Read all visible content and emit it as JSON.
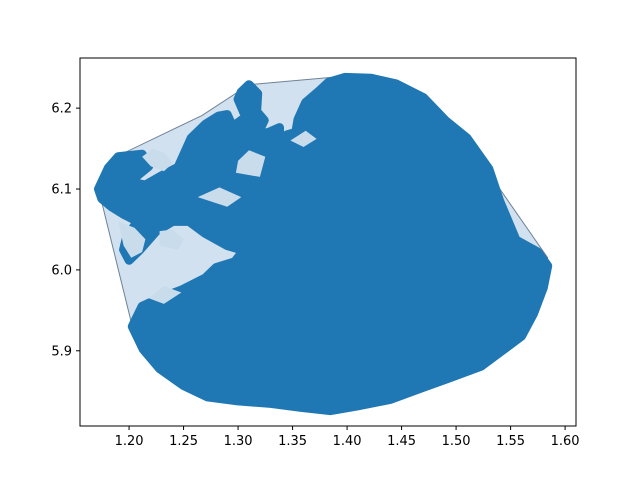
{
  "chart_data": {
    "type": "scatter",
    "title": "",
    "xlabel": "",
    "ylabel": "",
    "xlim": [
      1.155,
      1.61
    ],
    "ylim": [
      5.807,
      6.262
    ],
    "x_ticks": [
      1.2,
      1.25,
      1.3,
      1.35,
      1.4,
      1.45,
      1.5,
      1.55,
      1.6
    ],
    "x_tick_labels": [
      "1.20",
      "1.25",
      "1.30",
      "1.35",
      "1.40",
      "1.45",
      "1.50",
      "1.55",
      "1.60"
    ],
    "y_ticks": [
      5.9,
      6.0,
      6.1,
      6.2
    ],
    "y_tick_labels": [
      "5.9",
      "6.0",
      "6.1",
      "6.2"
    ],
    "grid": false,
    "point_color": "#1f77b4",
    "hull_fill": "#c9dcec",
    "hull_stroke": "#6e8296",
    "convex_hull": [
      [
        1.172,
        6.1
      ],
      [
        1.181,
        6.126
      ],
      [
        1.193,
        6.143
      ],
      [
        1.267,
        6.191
      ],
      [
        1.31,
        6.229
      ],
      [
        1.402,
        6.24
      ],
      [
        1.491,
        6.181
      ],
      [
        1.535,
        6.11
      ],
      [
        1.584,
        6.015
      ],
      [
        1.556,
        5.91
      ],
      [
        1.45,
        5.843
      ],
      [
        1.385,
        5.826
      ],
      [
        1.293,
        5.84
      ],
      [
        1.24,
        5.862
      ],
      [
        1.203,
        5.93
      ]
    ],
    "point_outline": [
      [
        1.172,
        6.1
      ],
      [
        1.181,
        6.126
      ],
      [
        1.19,
        6.14
      ],
      [
        1.212,
        6.143
      ],
      [
        1.218,
        6.128
      ],
      [
        1.208,
        6.117
      ],
      [
        1.196,
        6.11
      ],
      [
        1.215,
        6.105
      ],
      [
        1.228,
        6.115
      ],
      [
        1.245,
        6.127
      ],
      [
        1.257,
        6.163
      ],
      [
        1.27,
        6.18
      ],
      [
        1.282,
        6.19
      ],
      [
        1.29,
        6.192
      ],
      [
        1.295,
        6.177
      ],
      [
        1.307,
        6.189
      ],
      [
        1.3,
        6.211
      ],
      [
        1.303,
        6.22
      ],
      [
        1.31,
        6.229
      ],
      [
        1.318,
        6.218
      ],
      [
        1.317,
        6.196
      ],
      [
        1.324,
        6.185
      ],
      [
        1.318,
        6.168
      ],
      [
        1.328,
        6.17
      ],
      [
        1.338,
        6.176
      ],
      [
        1.338,
        6.16
      ],
      [
        1.345,
        6.167
      ],
      [
        1.353,
        6.17
      ],
      [
        1.355,
        6.186
      ],
      [
        1.362,
        6.207
      ],
      [
        1.375,
        6.222
      ],
      [
        1.383,
        6.232
      ],
      [
        1.398,
        6.238
      ],
      [
        1.422,
        6.237
      ],
      [
        1.445,
        6.23
      ],
      [
        1.47,
        6.213
      ],
      [
        1.49,
        6.185
      ],
      [
        1.51,
        6.163
      ],
      [
        1.53,
        6.125
      ],
      [
        1.54,
        6.085
      ],
      [
        1.555,
        6.037
      ],
      [
        1.575,
        6.022
      ],
      [
        1.584,
        6.005
      ],
      [
        1.58,
        5.978
      ],
      [
        1.571,
        5.946
      ],
      [
        1.56,
        5.918
      ],
      [
        1.54,
        5.898
      ],
      [
        1.523,
        5.881
      ],
      [
        1.497,
        5.868
      ],
      [
        1.47,
        5.855
      ],
      [
        1.44,
        5.84
      ],
      [
        1.41,
        5.832
      ],
      [
        1.385,
        5.826
      ],
      [
        1.358,
        5.83
      ],
      [
        1.33,
        5.835
      ],
      [
        1.3,
        5.838
      ],
      [
        1.272,
        5.843
      ],
      [
        1.25,
        5.857
      ],
      [
        1.228,
        5.878
      ],
      [
        1.213,
        5.902
      ],
      [
        1.203,
        5.93
      ],
      [
        1.212,
        5.955
      ],
      [
        1.228,
        5.965
      ],
      [
        1.248,
        5.975
      ],
      [
        1.27,
        5.99
      ],
      [
        1.28,
        6.003
      ],
      [
        1.297,
        6.01
      ],
      [
        1.305,
        6.024
      ],
      [
        1.29,
        6.03
      ],
      [
        1.27,
        6.045
      ],
      [
        1.255,
        6.06
      ],
      [
        1.24,
        6.06
      ],
      [
        1.225,
        6.048
      ],
      [
        1.21,
        6.025
      ],
      [
        1.2,
        6.012
      ],
      [
        1.195,
        6.025
      ],
      [
        1.198,
        6.042
      ],
      [
        1.208,
        6.06
      ],
      [
        1.196,
        6.068
      ],
      [
        1.184,
        6.078
      ],
      [
        1.175,
        6.088
      ]
    ],
    "gaps": [
      [
        [
          1.212,
          6.14
        ],
        [
          1.22,
          6.128
        ],
        [
          1.232,
          6.122
        ],
        [
          1.24,
          6.132
        ],
        [
          1.232,
          6.145
        ],
        [
          1.222,
          6.15
        ]
      ],
      [
        [
          1.19,
          6.06
        ],
        [
          1.205,
          6.052
        ],
        [
          1.215,
          6.038
        ],
        [
          1.212,
          6.022
        ],
        [
          1.202,
          6.015
        ],
        [
          1.195,
          6.03
        ]
      ],
      [
        [
          1.228,
          6.03
        ],
        [
          1.245,
          6.025
        ],
        [
          1.25,
          6.038
        ],
        [
          1.24,
          6.05
        ],
        [
          1.228,
          6.048
        ]
      ],
      [
        [
          1.298,
          6.12
        ],
        [
          1.32,
          6.115
        ],
        [
          1.325,
          6.14
        ],
        [
          1.31,
          6.148
        ],
        [
          1.3,
          6.135
        ]
      ],
      [
        [
          1.348,
          6.16
        ],
        [
          1.36,
          6.152
        ],
        [
          1.372,
          6.162
        ],
        [
          1.362,
          6.172
        ]
      ],
      [
        [
          1.218,
          5.965
        ],
        [
          1.232,
          5.958
        ],
        [
          1.248,
          5.972
        ],
        [
          1.232,
          5.98
        ]
      ],
      [
        [
          1.263,
          6.09
        ],
        [
          1.29,
          6.078
        ],
        [
          1.303,
          6.09
        ],
        [
          1.283,
          6.102
        ]
      ]
    ]
  }
}
